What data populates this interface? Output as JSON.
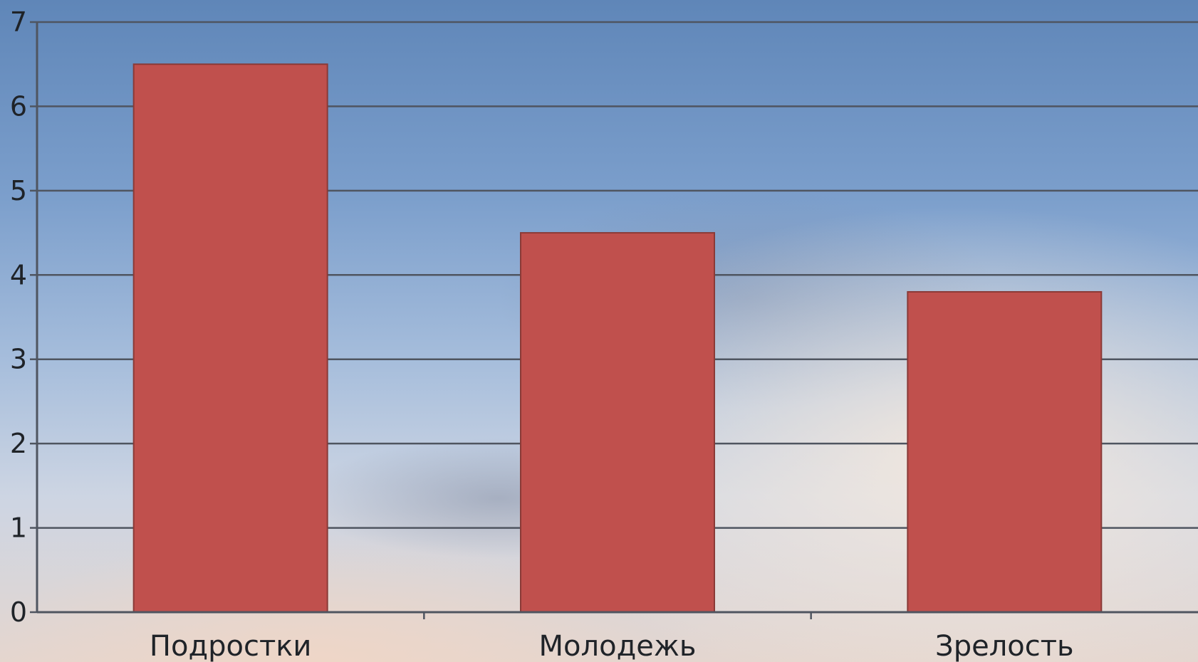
{
  "chart_data": {
    "type": "bar",
    "categories": [
      "Подростки",
      "Молодежь",
      "Зрелость"
    ],
    "values": [
      6.5,
      4.5,
      3.8
    ],
    "ylim": [
      0,
      7
    ],
    "yticks": [
      "0",
      "1",
      "2",
      "3",
      "4",
      "5",
      "6",
      "7"
    ],
    "grid": true,
    "title": "",
    "xlabel": "",
    "ylabel": "",
    "colors": {
      "bar": "#c0504d",
      "bar_edge": "#8a3a37",
      "grid": "#4f5560",
      "text": "#1f2328"
    }
  }
}
